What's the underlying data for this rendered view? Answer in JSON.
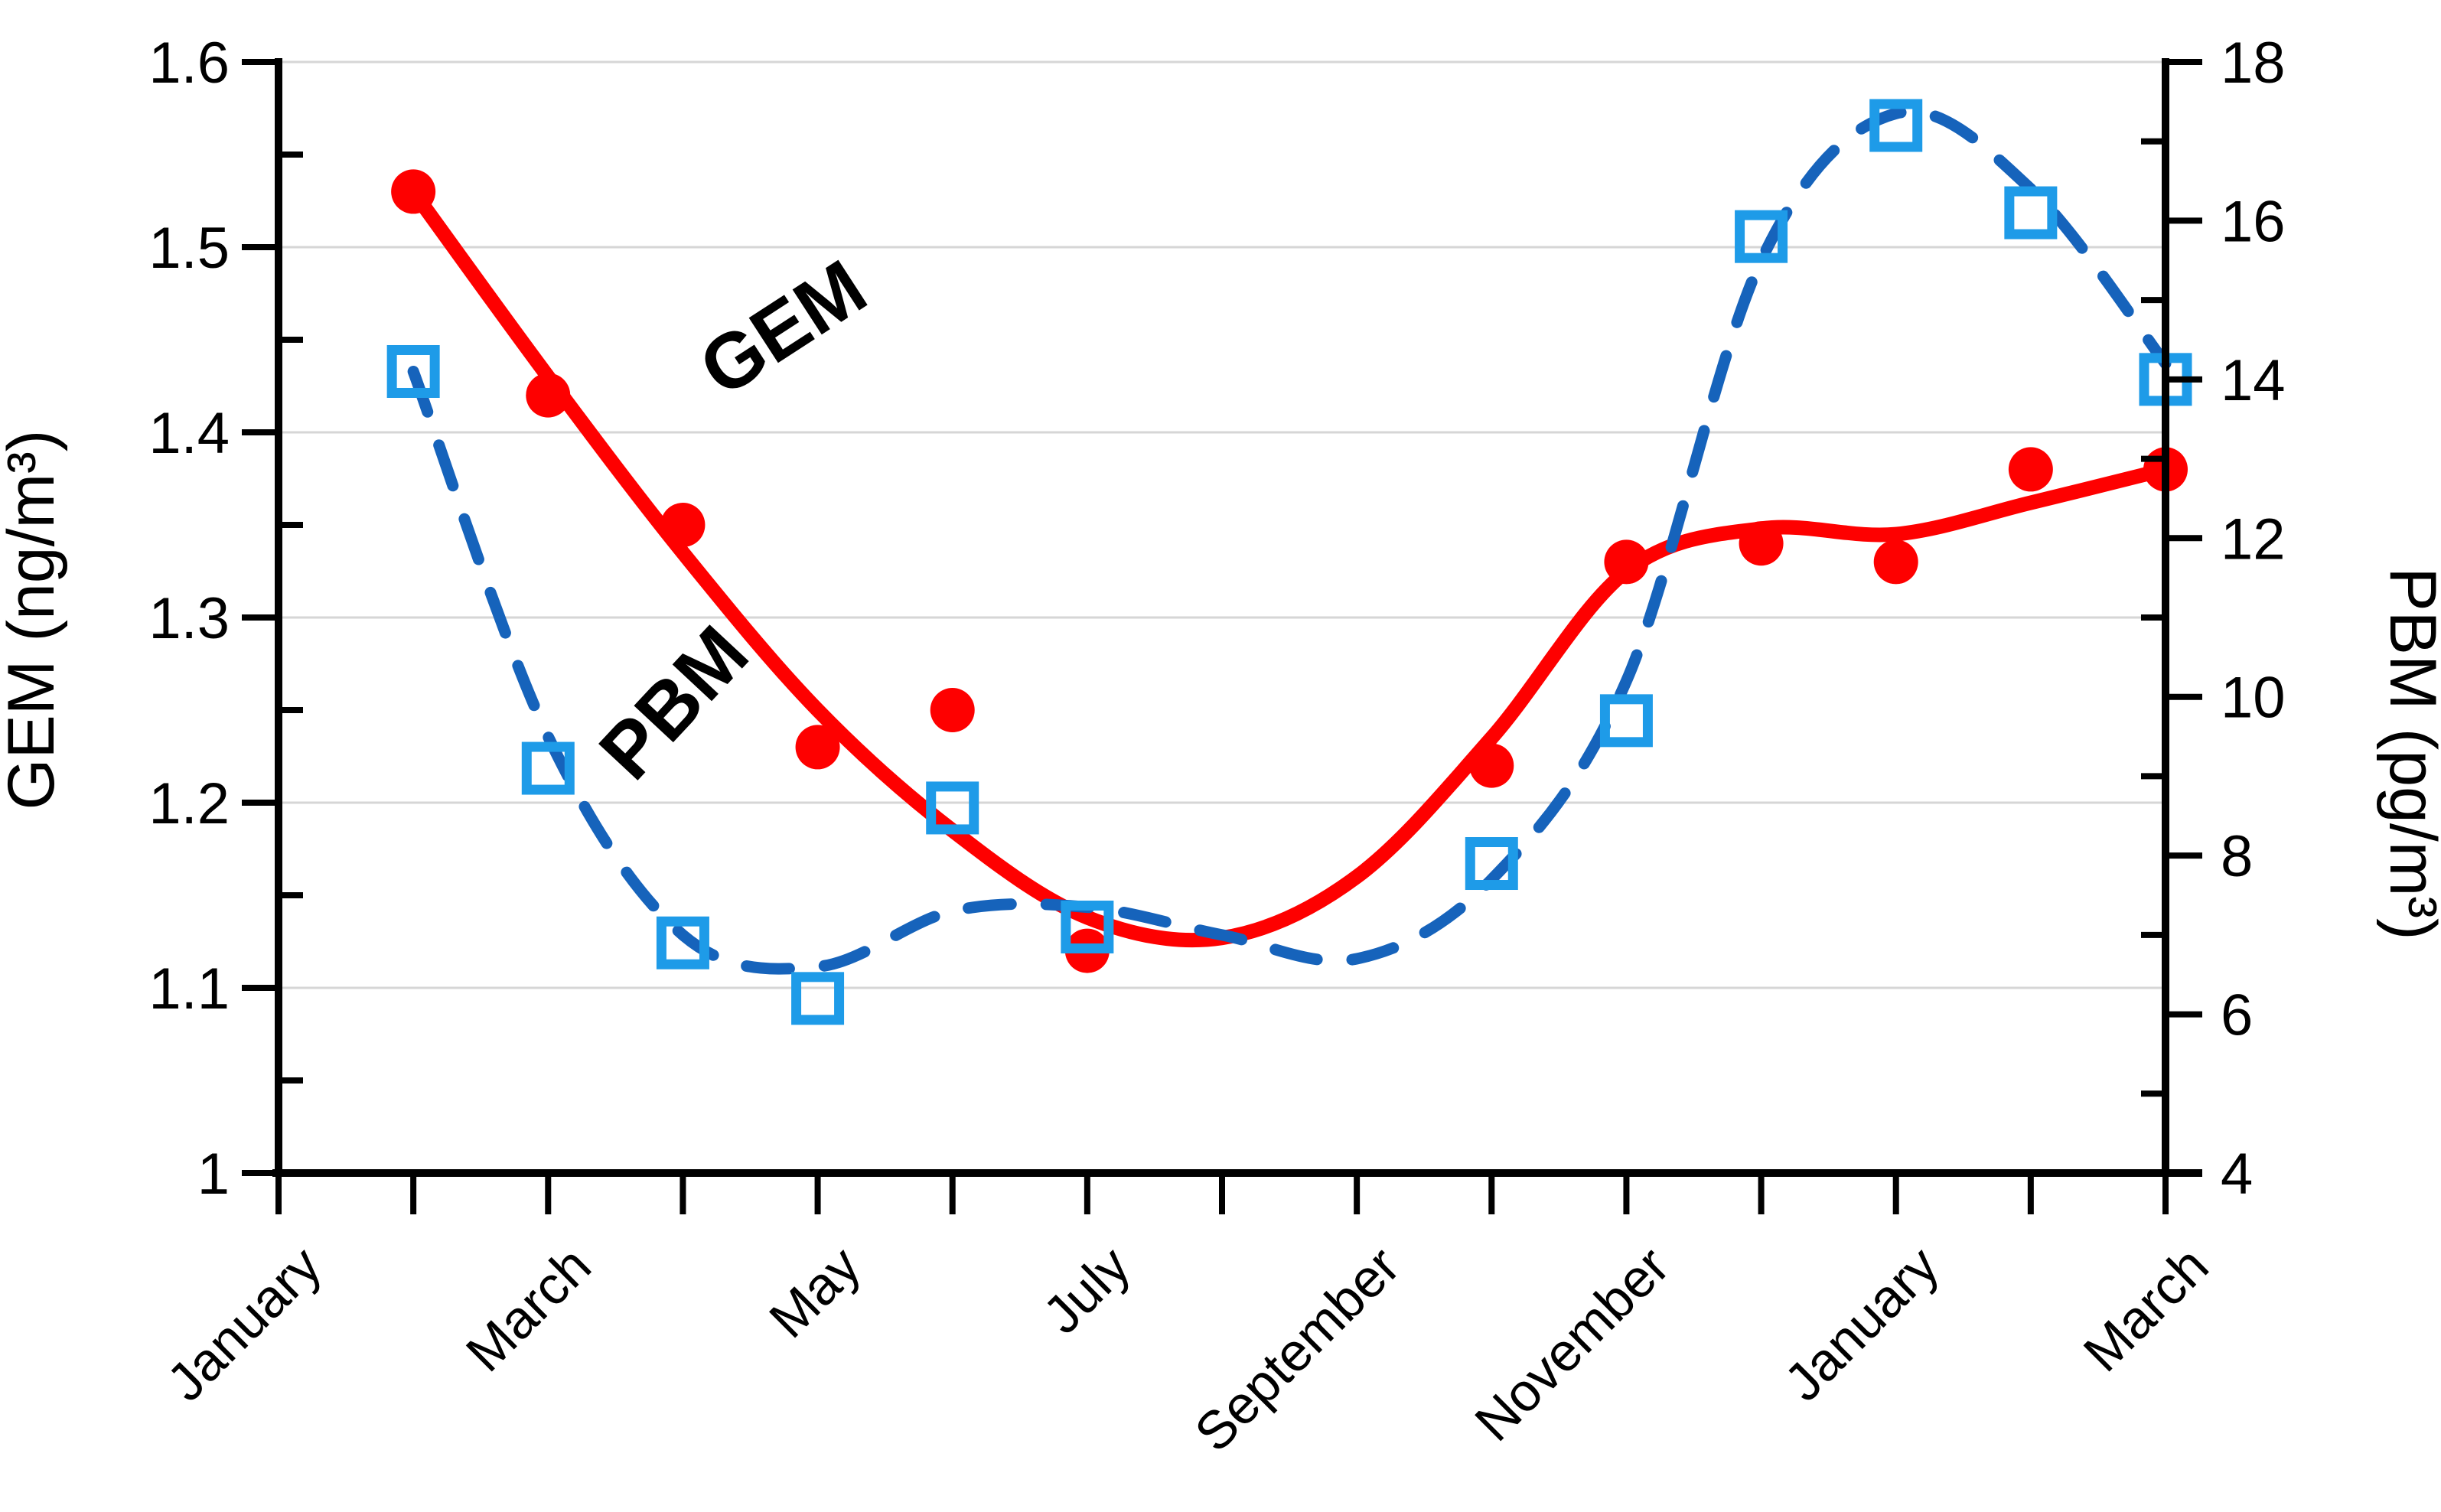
{
  "chart_data": {
    "type": "line",
    "title": "",
    "months": [
      "January",
      "February",
      "March",
      "April",
      "May",
      "June",
      "July",
      "August",
      "September",
      "October",
      "November",
      "December",
      "January",
      "February",
      "March"
    ],
    "shown_month_label_indices": [
      0,
      2,
      4,
      6,
      8,
      10,
      12,
      14
    ],
    "left_axis": {
      "title": "GEM (ng/m³)",
      "min": 1.0,
      "max": 1.6,
      "tick_values": [
        1.0,
        1.1,
        1.2,
        1.3,
        1.4,
        1.5,
        1.6
      ],
      "tick_labels": [
        "1",
        "1.1",
        "1.2",
        "1.3",
        "1.4",
        "1.5",
        "1.6"
      ],
      "minor_tick_values": [
        1.05,
        1.15,
        1.25,
        1.35,
        1.45,
        1.55
      ]
    },
    "right_axis": {
      "title": "PBM (pg/m³)",
      "min": 4,
      "max": 18,
      "tick_values": [
        4,
        6,
        8,
        10,
        12,
        14,
        16,
        18
      ],
      "tick_labels": [
        "4",
        "6",
        "8",
        "10",
        "12",
        "14",
        "16",
        "18"
      ],
      "minor_tick_values": [
        5,
        7,
        9,
        11,
        13,
        15,
        17
      ]
    },
    "grid": {
      "show_horizontal": true,
      "gridline_values": [
        1.1,
        1.2,
        1.3,
        1.4,
        1.5,
        1.6
      ],
      "color": "#d6d6d6"
    },
    "series": [
      {
        "name": "GEM",
        "axis": "left",
        "marker": "filled-circle",
        "line_style": "solid",
        "line_color": "#fe0000",
        "marker_color": "#fe0000",
        "points": [
          {
            "month_index": 1,
            "month": "February",
            "value": 1.53
          },
          {
            "month_index": 2,
            "month": "March",
            "value": 1.42
          },
          {
            "month_index": 3,
            "month": "April",
            "value": 1.35
          },
          {
            "month_index": 4,
            "month": "May",
            "value": 1.23
          },
          {
            "month_index": 5,
            "month": "June",
            "value": 1.25
          },
          {
            "month_index": 6,
            "month": "July",
            "value": 1.12
          },
          {
            "month_index": 9,
            "month": "October",
            "value": 1.22
          },
          {
            "month_index": 10,
            "month": "November",
            "value": 1.33
          },
          {
            "month_index": 11,
            "month": "December",
            "value": 1.34
          },
          {
            "month_index": 12,
            "month": "January",
            "value": 1.33
          },
          {
            "month_index": 13,
            "month": "February",
            "value": 1.38
          },
          {
            "month_index": 14,
            "month": "March",
            "value": 1.38
          }
        ],
        "trend_curve": [
          [
            1,
            1.53
          ],
          [
            2,
            1.43
          ],
          [
            3,
            1.335
          ],
          [
            4,
            1.25
          ],
          [
            5,
            1.185
          ],
          [
            6,
            1.138
          ],
          [
            7,
            1.127
          ],
          [
            8,
            1.16
          ],
          [
            9,
            1.235
          ],
          [
            10,
            1.325
          ],
          [
            11,
            1.348
          ],
          [
            12,
            1.345
          ],
          [
            13,
            1.362
          ],
          [
            14,
            1.38
          ]
        ]
      },
      {
        "name": "PBM",
        "axis": "right",
        "marker": "open-square",
        "line_style": "dashed",
        "line_color": "#1663bb",
        "marker_color": "#1e9be8",
        "points": [
          {
            "month_index": 1,
            "month": "February",
            "value": 14.1
          },
          {
            "month_index": 2,
            "month": "March",
            "value": 9.1
          },
          {
            "month_index": 3,
            "month": "April",
            "value": 6.9
          },
          {
            "month_index": 4,
            "month": "May",
            "value": 6.2
          },
          {
            "month_index": 5,
            "month": "June",
            "value": 8.6
          },
          {
            "month_index": 6,
            "month": "July",
            "value": 7.1
          },
          {
            "month_index": 9,
            "month": "October",
            "value": 7.9
          },
          {
            "month_index": 10,
            "month": "November",
            "value": 9.7
          },
          {
            "month_index": 11,
            "month": "December",
            "value": 15.8
          },
          {
            "month_index": 12,
            "month": "January",
            "value": 17.2
          },
          {
            "month_index": 13,
            "month": "February",
            "value": 16.1
          },
          {
            "month_index": 14,
            "month": "March",
            "value": 14.0
          }
        ],
        "trend_curve": [
          [
            1,
            14.1
          ],
          [
            2,
            9.5
          ],
          [
            3,
            7.0
          ],
          [
            4,
            6.6
          ],
          [
            5,
            7.3
          ],
          [
            6,
            7.35
          ],
          [
            7,
            7.0
          ],
          [
            8,
            6.7
          ],
          [
            9,
            7.7
          ],
          [
            10,
            10.2
          ],
          [
            11,
            15.5
          ],
          [
            12,
            17.35
          ],
          [
            13,
            16.4
          ],
          [
            14,
            14.2
          ]
        ]
      }
    ],
    "annotations": [
      {
        "text": "GEM",
        "target_series": "GEM"
      },
      {
        "text": "PBM",
        "target_series": "PBM"
      }
    ],
    "legend_position": "none"
  }
}
